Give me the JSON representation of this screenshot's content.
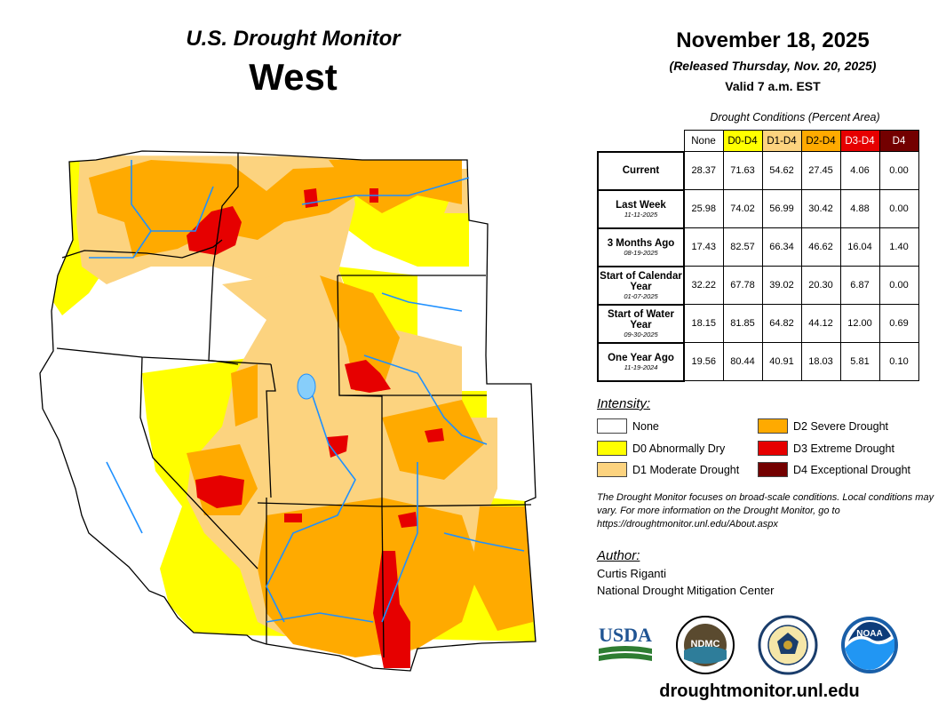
{
  "header": {
    "product": "U.S. Drought Monitor",
    "region": "West",
    "date": "November 18, 2025",
    "released": "(Released Thursday, Nov. 20, 2025)",
    "valid": "Valid 7 a.m. EST"
  },
  "table": {
    "caption": "Drought Conditions (Percent Area)",
    "columns": [
      {
        "label": "None",
        "color": "#ffffff",
        "text_color": "#000000"
      },
      {
        "label": "D0-D4",
        "color": "#ffff00",
        "text_color": "#000000"
      },
      {
        "label": "D1-D4",
        "color": "#fcd37f",
        "text_color": "#000000"
      },
      {
        "label": "D2-D4",
        "color": "#ffaa00",
        "text_color": "#000000"
      },
      {
        "label": "D3-D4",
        "color": "#e60000",
        "text_color": "#ffffff"
      },
      {
        "label": "D4",
        "color": "#730000",
        "text_color": "#ffffff"
      }
    ],
    "rows": [
      {
        "label": "Current",
        "sublabel": "",
        "values": [
          "28.37",
          "71.63",
          "54.62",
          "27.45",
          "4.06",
          "0.00"
        ]
      },
      {
        "label": "Last Week",
        "sublabel": "11-11-2025",
        "values": [
          "25.98",
          "74.02",
          "56.99",
          "30.42",
          "4.88",
          "0.00"
        ]
      },
      {
        "label": "3 Months Ago",
        "sublabel": "08-19-2025",
        "values": [
          "17.43",
          "82.57",
          "66.34",
          "46.62",
          "16.04",
          "1.40"
        ]
      },
      {
        "label": "Start of Calendar Year",
        "sublabel": "01-07-2025",
        "values": [
          "32.22",
          "67.78",
          "39.02",
          "20.30",
          "6.87",
          "0.00"
        ]
      },
      {
        "label": "Start of Water Year",
        "sublabel": "09-30-2025",
        "values": [
          "18.15",
          "81.85",
          "64.82",
          "44.12",
          "12.00",
          "0.69"
        ]
      },
      {
        "label": "One Year Ago",
        "sublabel": "11-19-2024",
        "values": [
          "19.56",
          "80.44",
          "40.91",
          "18.03",
          "5.81",
          "0.10"
        ]
      }
    ]
  },
  "legend": {
    "title": "Intensity:",
    "items": [
      {
        "label": "None",
        "color": "#ffffff"
      },
      {
        "label": "D0 Abnormally Dry",
        "color": "#ffff00"
      },
      {
        "label": "D1 Moderate Drought",
        "color": "#fcd37f"
      },
      {
        "label": "D2 Severe Drought",
        "color": "#ffaa00"
      },
      {
        "label": "D3 Extreme Drought",
        "color": "#e60000"
      },
      {
        "label": "D4 Exceptional Drought",
        "color": "#730000"
      }
    ]
  },
  "note": "The Drought Monitor focuses on broad-scale conditions. Local conditions may vary. For more information on the Drought Monitor, go to https://droughtmonitor.unl.edu/About.aspx",
  "author": {
    "title": "Author:",
    "name": "Curtis Riganti",
    "organization": "National Drought Mitigation Center"
  },
  "logos": {
    "usda": "USDA",
    "ndmc": "NDMC",
    "noaa": "NOAA"
  },
  "website": "droughtmonitor.unl.edu"
}
